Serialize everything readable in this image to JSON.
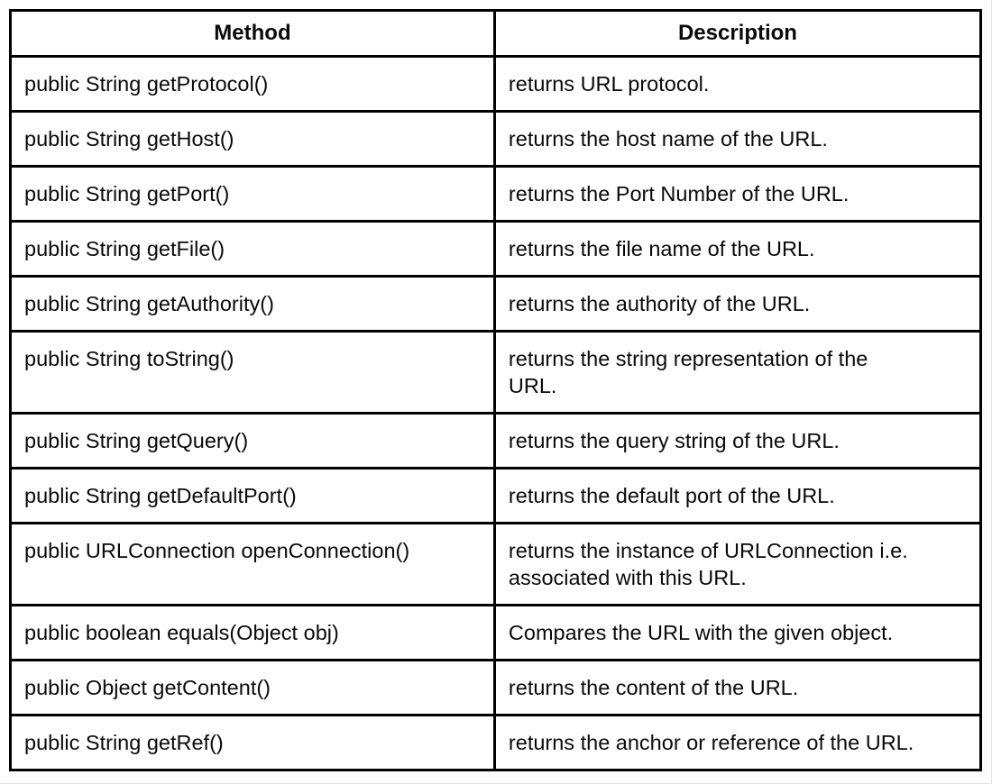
{
  "page": {
    "background": "#ffffff",
    "border_color": "#000000",
    "text_color": "#0a0a0a"
  },
  "table": {
    "headers": [
      "Method",
      "Description"
    ],
    "rows": [
      {
        "method": "public String getProtocol()",
        "description": "returns URL protocol."
      },
      {
        "method": "public String getHost()",
        "description": "returns the host name of the URL."
      },
      {
        "method": "public String getPort()",
        "description": "returns the Port Number of the URL."
      },
      {
        "method": "public String getFile()",
        "description": "returns the file name of the URL."
      },
      {
        "method": "public String getAuthority()",
        "description": "returns the authority of the URL."
      },
      {
        "method": "public String toString()",
        "description": "returns the string representation of the\nURL."
      },
      {
        "method": "public String getQuery()",
        "description": "returns the query string of the URL."
      },
      {
        "method": "public String getDefaultPort()",
        "description": "returns the default port of the URL."
      },
      {
        "method": "public URLConnection openConnection()",
        "description": "returns the instance of URLConnection i.e.\nassociated with this URL."
      },
      {
        "method": "public boolean equals(Object obj)",
        "description": "Compares the URL with the given object."
      },
      {
        "method": "public Object getContent()",
        "description": "returns the content of the URL."
      },
      {
        "method": "public String getRef()",
        "description": "returns the anchor or reference of the URL."
      }
    ]
  }
}
